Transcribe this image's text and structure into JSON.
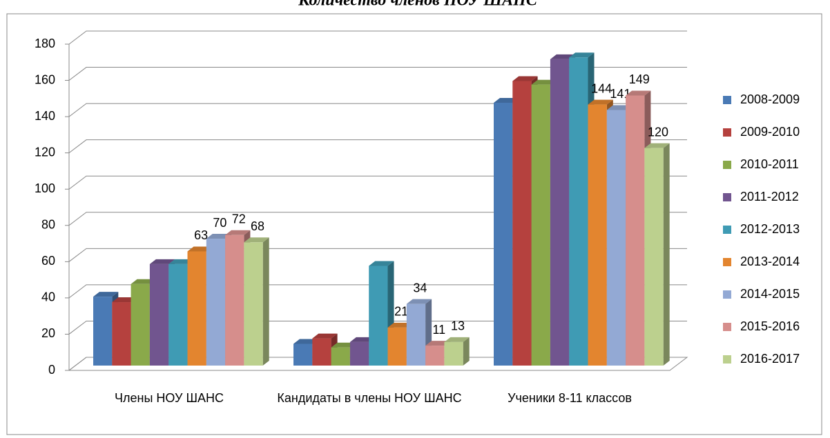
{
  "chart_data": {
    "type": "bar3d",
    "title": "Количество членов НОУ ШАНС",
    "categories": [
      "Члены НОУ ШАНС",
      "Кандидаты в члены НОУ ШАНС",
      "Ученики 8-11 классов"
    ],
    "series": [
      {
        "name": "2008-2009",
        "color": "#4a7ab5",
        "values": [
          38,
          12,
          145
        ]
      },
      {
        "name": "2009-2010",
        "color": "#b5413e",
        "values": [
          35,
          15,
          157
        ]
      },
      {
        "name": "2010-2011",
        "color": "#8aa94a",
        "values": [
          45,
          10,
          155
        ]
      },
      {
        "name": "2011-2012",
        "color": "#71558f",
        "values": [
          56,
          13,
          169
        ]
      },
      {
        "name": "2012-2013",
        "color": "#3f9bb4",
        "values": [
          56,
          55,
          170
        ]
      },
      {
        "name": "2013-2014",
        "color": "#e3852f",
        "values": [
          63,
          21,
          144
        ],
        "show_labels": true
      },
      {
        "name": "2014-2015",
        "color": "#93a9d4",
        "values": [
          70,
          34,
          141
        ],
        "show_labels": true
      },
      {
        "name": "2015-2016",
        "color": "#d68e8c",
        "values": [
          72,
          11,
          149
        ],
        "show_labels": true
      },
      {
        "name": "2016-2017",
        "color": "#bcd08e",
        "values": [
          68,
          13,
          120
        ],
        "show_labels": true
      }
    ],
    "ylim": [
      0,
      180
    ],
    "yticks": [
      0,
      20,
      40,
      60,
      80,
      100,
      120,
      140,
      160,
      180
    ],
    "grid": true,
    "legend": "right"
  }
}
